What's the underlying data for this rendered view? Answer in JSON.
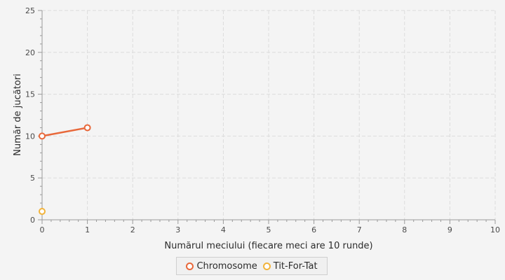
{
  "chart_data": {
    "type": "line",
    "xlabel": "Numărul meciului (fiecare meci are 10 runde)",
    "ylabel": "Număr de jucători",
    "xlim": [
      0,
      10
    ],
    "ylim": [
      0,
      25
    ],
    "x_ticks": [
      "0",
      "1",
      "2",
      "3",
      "4",
      "5",
      "6",
      "7",
      "8",
      "9",
      "10"
    ],
    "y_ticks": [
      "0",
      "5",
      "10",
      "15",
      "20",
      "25"
    ],
    "grid": true,
    "legend_position": "bottom",
    "series": [
      {
        "name": "Chromosome",
        "color": "#e8683a",
        "x": [
          0,
          1
        ],
        "y": [
          10,
          11
        ]
      },
      {
        "name": "Tit-For-Tat",
        "color": "#f2b33a",
        "x": [
          0
        ],
        "y": [
          1
        ]
      }
    ]
  }
}
